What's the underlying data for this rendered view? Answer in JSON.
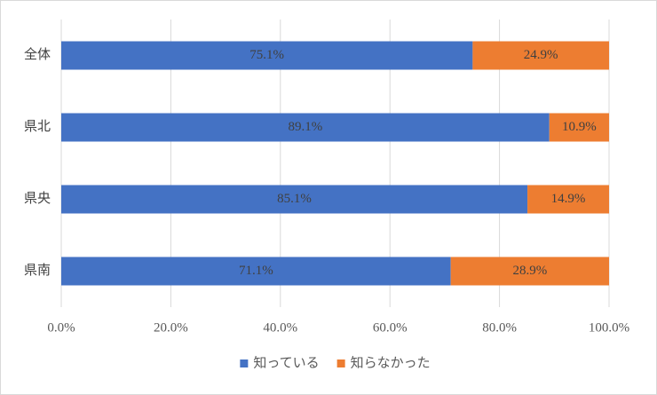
{
  "chart_data": {
    "type": "bar",
    "orientation": "horizontal",
    "stacked": true,
    "categories": [
      "全体",
      "県北",
      "県央",
      "県南"
    ],
    "series": [
      {
        "name": "知っている",
        "color": "#4472c4",
        "values": [
          75.1,
          89.1,
          85.1,
          71.1
        ],
        "value_labels": [
          "75.1%",
          "89.1%",
          "85.1%",
          "71.1%"
        ]
      },
      {
        "name": "知らなかった",
        "color": "#ed7d31",
        "values": [
          24.9,
          10.9,
          14.9,
          28.9
        ],
        "value_labels": [
          "24.9%",
          "10.9%",
          "14.9%",
          "28.9%"
        ]
      }
    ],
    "xlim": [
      0,
      100
    ],
    "xticks": [
      {
        "value": 0,
        "label": "0.0%"
      },
      {
        "value": 20,
        "label": "20.0%"
      },
      {
        "value": 40,
        "label": "40.0%"
      },
      {
        "value": 60,
        "label": "60.0%"
      },
      {
        "value": 80,
        "label": "80.0%"
      },
      {
        "value": 100,
        "label": "100.0%"
      }
    ],
    "grid": true,
    "legend": "bottom"
  }
}
